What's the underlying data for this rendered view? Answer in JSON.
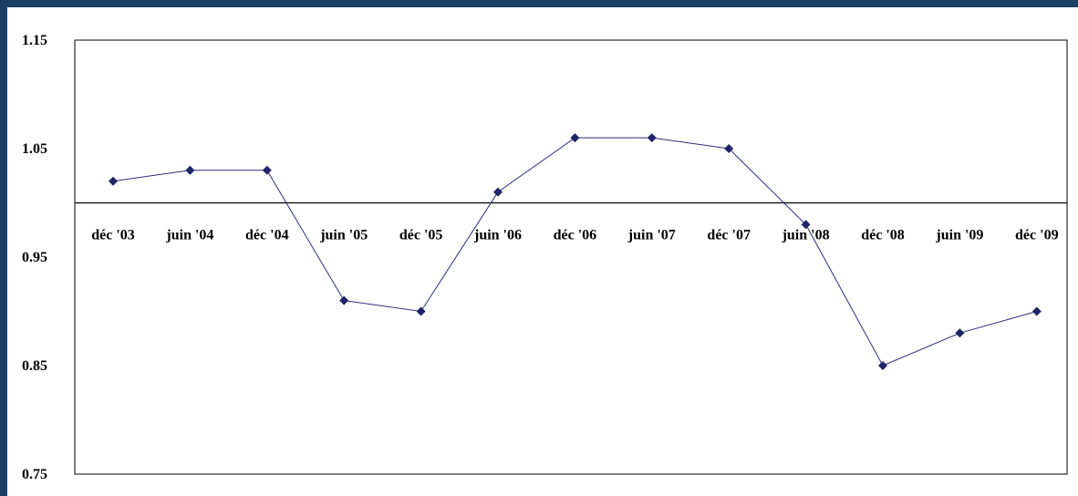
{
  "chart_data": {
    "type": "line",
    "title": "",
    "xlabel": "",
    "ylabel": "",
    "categories": [
      "déc '03",
      "juin '04",
      "déc '04",
      "juin '05",
      "déc '05",
      "juin '06",
      "déc '06",
      "juin '07",
      "déc '07",
      "juin '08",
      "déc '08",
      "juin '09",
      "déc '09"
    ],
    "series": [
      {
        "values": [
          1.02,
          1.03,
          1.03,
          0.91,
          0.9,
          1.01,
          1.06,
          1.06,
          1.05,
          0.98,
          0.85,
          0.88,
          0.9
        ]
      }
    ],
    "ylim": [
      0.75,
      1.15
    ],
    "y_ticks": [
      "1.15",
      "1.05",
      "0.95",
      "0.85",
      "0.75"
    ],
    "x_axis_crosses_at": 1.0,
    "grid": false,
    "legend": "none",
    "colors": {
      "line": "#2b2d7a",
      "marker": "#1f2466",
      "axis": "#000000",
      "frame": "#1c3f66"
    }
  }
}
